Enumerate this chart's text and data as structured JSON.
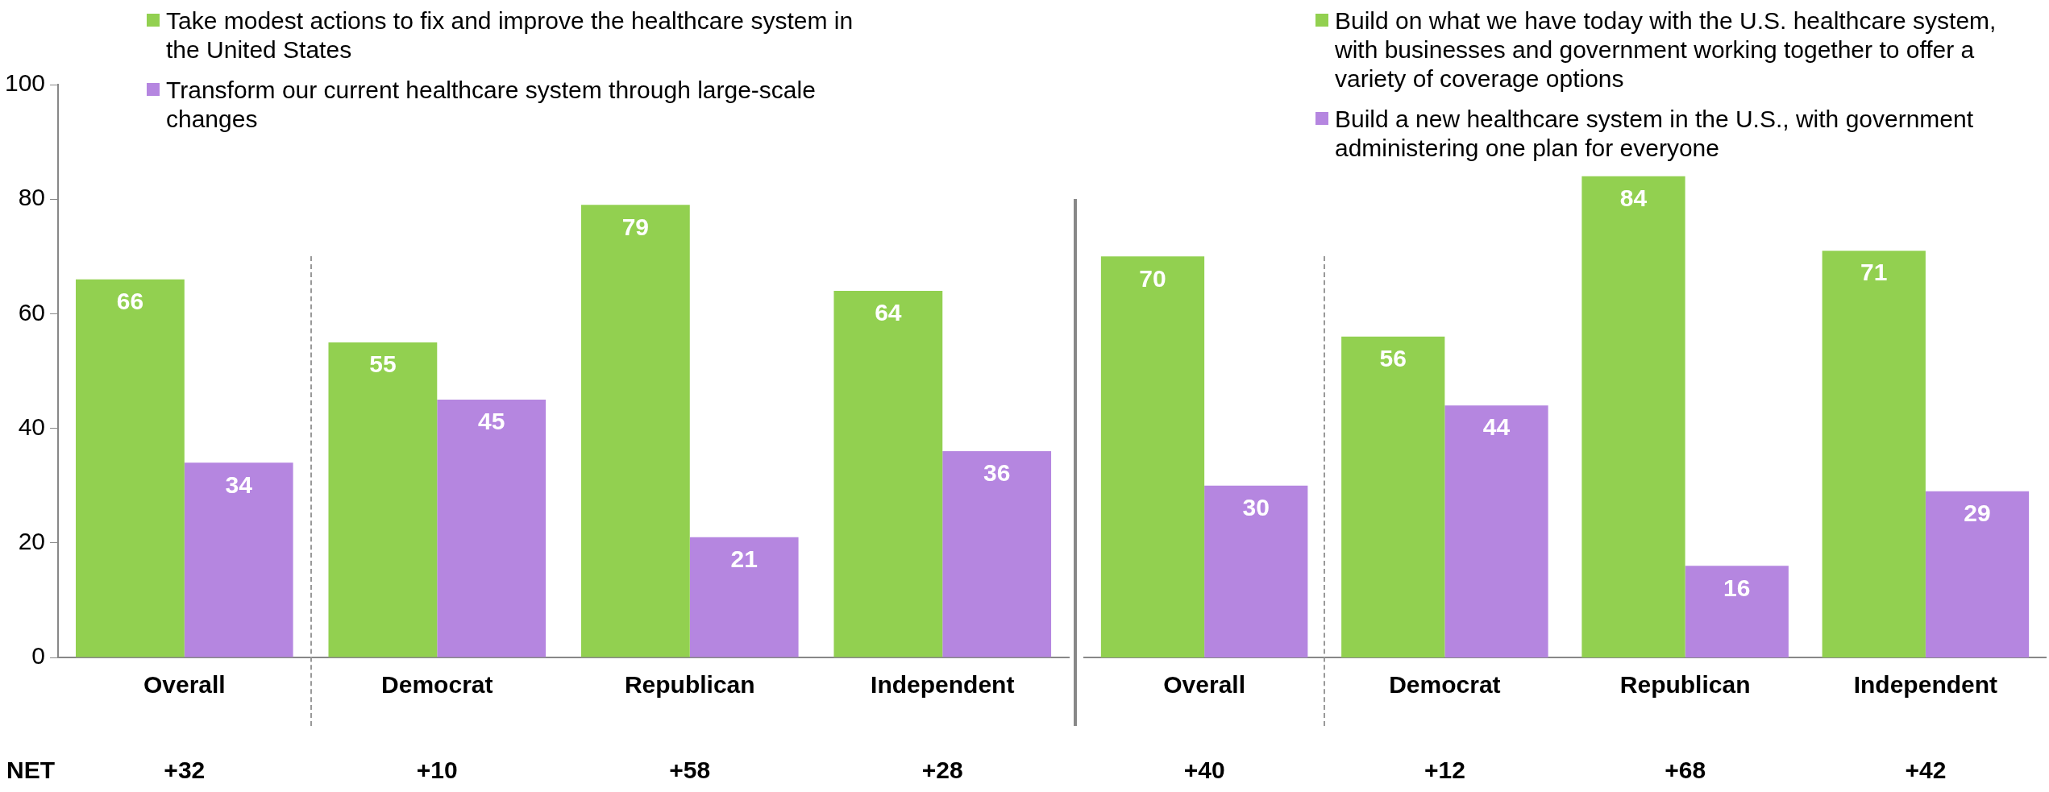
{
  "chart_data": [
    {
      "type": "bar",
      "categories": [
        "Overall",
        "Democrat",
        "Republican",
        "Independent"
      ],
      "series": [
        {
          "name": "Take modest actions to fix and improve the healthcare system in the United States",
          "color": "#92d050",
          "values": [
            66,
            55,
            79,
            64
          ]
        },
        {
          "name": "Transform our current healthcare system through large-scale changes",
          "color": "#b586e0",
          "values": [
            34,
            45,
            21,
            36
          ]
        }
      ],
      "ylim": [
        0,
        100
      ],
      "yticks": [
        0,
        20,
        40,
        60,
        80,
        100
      ],
      "grid": false,
      "legend": "top",
      "data_labels": true,
      "annotations": [
        "NET",
        "+32",
        "+10",
        "+58",
        "+28"
      ]
    },
    {
      "type": "bar",
      "categories": [
        "Overall",
        "Democrat",
        "Republican",
        "Independent"
      ],
      "series": [
        {
          "name": "Build on what we have today with the U.S. healthcare system, with businesses and government working together to offer a variety of coverage options",
          "color": "#92d050",
          "values": [
            70,
            56,
            84,
            71
          ]
        },
        {
          "name": "Build a new healthcare system in the U.S., with government administering one plan for everyone",
          "color": "#b586e0",
          "values": [
            30,
            44,
            16,
            29
          ]
        }
      ],
      "ylim": [
        0,
        100
      ],
      "yticks": [
        0,
        20,
        40,
        60,
        80,
        100
      ],
      "tick_labels": "x",
      "grid": false,
      "legend": "top",
      "data_labels": true,
      "annotations": [
        "+40",
        "+12",
        "+68",
        "+42"
      ]
    }
  ]
}
